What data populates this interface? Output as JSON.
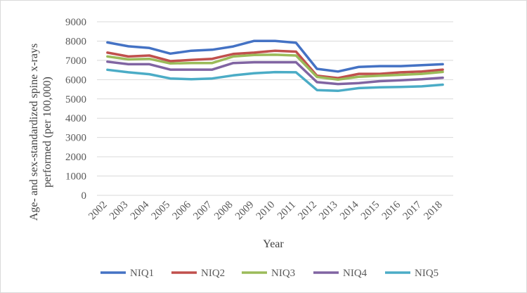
{
  "chart_data": {
    "type": "line",
    "title": "",
    "xlabel": "Year",
    "ylabel": "Age- and sex-standardized spine x-rays performed (per 100,000)",
    "ylim": [
      0,
      9000
    ],
    "yticks": [
      0,
      1000,
      2000,
      3000,
      4000,
      5000,
      6000,
      7000,
      8000,
      9000
    ],
    "ytick_labels": [
      "0",
      "1000",
      "2000",
      "3000",
      "4000",
      "5000",
      "6000",
      "7000",
      "8000",
      "9000"
    ],
    "grid": true,
    "legend_position": "bottom",
    "categories": [
      "2002",
      "2003",
      "2004",
      "2005",
      "2006",
      "2007",
      "2008",
      "2009",
      "2010",
      "2011",
      "2012",
      "2013",
      "2014",
      "2015",
      "2016",
      "2017",
      "2018"
    ],
    "series": [
      {
        "name": "NIQ1",
        "color": "#4472C4",
        "values": [
          7930,
          7730,
          7640,
          7350,
          7500,
          7550,
          7720,
          8010,
          8010,
          7910,
          6560,
          6420,
          6660,
          6700,
          6700,
          6750,
          6800
        ]
      },
      {
        "name": "NIQ2",
        "color": "#C0504D",
        "values": [
          7400,
          7200,
          7250,
          6960,
          7020,
          7080,
          7330,
          7400,
          7500,
          7450,
          6200,
          6080,
          6300,
          6300,
          6380,
          6420,
          6520
        ]
      },
      {
        "name": "NIQ3",
        "color": "#9BBB59",
        "values": [
          7200,
          7050,
          7080,
          6840,
          6860,
          6860,
          7200,
          7280,
          7290,
          7250,
          6140,
          6000,
          6150,
          6200,
          6250,
          6300,
          6400
        ]
      },
      {
        "name": "NIQ4",
        "color": "#8064A2",
        "values": [
          6930,
          6800,
          6800,
          6520,
          6520,
          6520,
          6860,
          6900,
          6900,
          6900,
          5870,
          5770,
          5820,
          5920,
          5970,
          6020,
          6100
        ]
      },
      {
        "name": "NIQ5",
        "color": "#4BACC6",
        "values": [
          6510,
          6380,
          6280,
          6060,
          6020,
          6060,
          6220,
          6330,
          6390,
          6380,
          5460,
          5420,
          5560,
          5600,
          5620,
          5650,
          5740
        ]
      }
    ]
  }
}
